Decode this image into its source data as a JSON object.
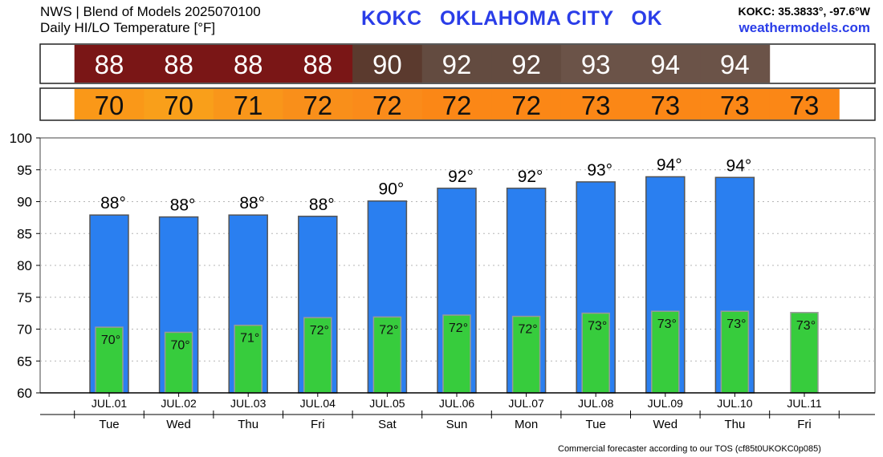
{
  "header": {
    "title_line1": "NWS | Blend of Models 2025070100",
    "title_line2": "Daily HI/LO Temperature [°F]",
    "station": "KOKC   OKLAHOMA CITY   OK",
    "coords": "KOKC: 35.3833°, -97.6°W",
    "website": "weathermodels.com"
  },
  "footer": "Commercial forecaster according to our TOS (cf85t0UKOKC0p085)",
  "colors": {
    "hi_bar": "#2a7ff0",
    "lo_bar": "#37cc3d",
    "station_text": "#2a3de8"
  },
  "chart_data": {
    "type": "bar",
    "categories": [
      "JUL.01",
      "JUL.02",
      "JUL.03",
      "JUL.04",
      "JUL.05",
      "JUL.06",
      "JUL.07",
      "JUL.08",
      "JUL.09",
      "JUL.10",
      "JUL.11"
    ],
    "days": [
      "Tue",
      "Wed",
      "Thu",
      "Fri",
      "Sat",
      "Sun",
      "Mon",
      "Tue",
      "Wed",
      "Thu",
      "Fri"
    ],
    "series": [
      {
        "values": [
          87.9,
          87.6,
          87.9,
          87.7,
          90.1,
          92.1,
          92.1,
          93.1,
          93.9,
          93.8,
          null
        ],
        "labels": [
          "88°",
          "88°",
          "88°",
          "88°",
          "90°",
          "92°",
          "92°",
          "93°",
          "94°",
          "94°",
          ""
        ],
        "table_values": [
          "88",
          "88",
          "88",
          "88",
          "90",
          "92",
          "92",
          "93",
          "94",
          "94",
          ""
        ],
        "colors": [
          "#7a1616",
          "#7a1616",
          "#7a1616",
          "#7a1616",
          "#5b3a2e",
          "#634b40",
          "#634b40",
          "#6b5348",
          "#6b5348",
          "#6b5348",
          ""
        ]
      },
      {
        "values": [
          70.3,
          69.5,
          70.6,
          71.8,
          71.9,
          72.2,
          72.0,
          72.5,
          72.8,
          72.8,
          72.6
        ],
        "labels": [
          "70°",
          "70°",
          "71°",
          "72°",
          "72°",
          "72°",
          "72°",
          "73°",
          "73°",
          "73°",
          "73°"
        ],
        "table_values": [
          "70",
          "70",
          "71",
          "72",
          "72",
          "72",
          "72",
          "73",
          "73",
          "73",
          "73"
        ],
        "colors": [
          "#fa9818",
          "#f99f1a",
          "#f9961a",
          "#f98f1a",
          "#fa8b1a",
          "#fb8716",
          "#fb8716",
          "#fb8716",
          "#fb8716",
          "#fb8716",
          "#fb8716"
        ]
      }
    ],
    "ylim": [
      60,
      100
    ],
    "yticks": [
      60,
      65,
      70,
      75,
      80,
      85,
      90,
      95,
      100
    ],
    "grid": true
  }
}
